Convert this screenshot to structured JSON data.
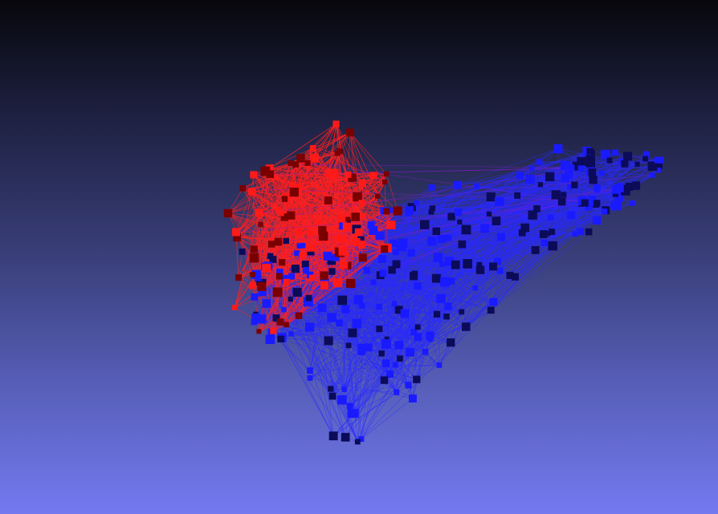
{
  "scene": {
    "background_top": "#07070c",
    "background_bottom": "#7479f0",
    "community_a_color": "#ff1a1a",
    "community_b_color": "#1a1aff",
    "edge_a_color": "#ff2020",
    "edge_b_color": "#2a2aff",
    "node_shape": "square",
    "icon": "3d-network-graph"
  }
}
